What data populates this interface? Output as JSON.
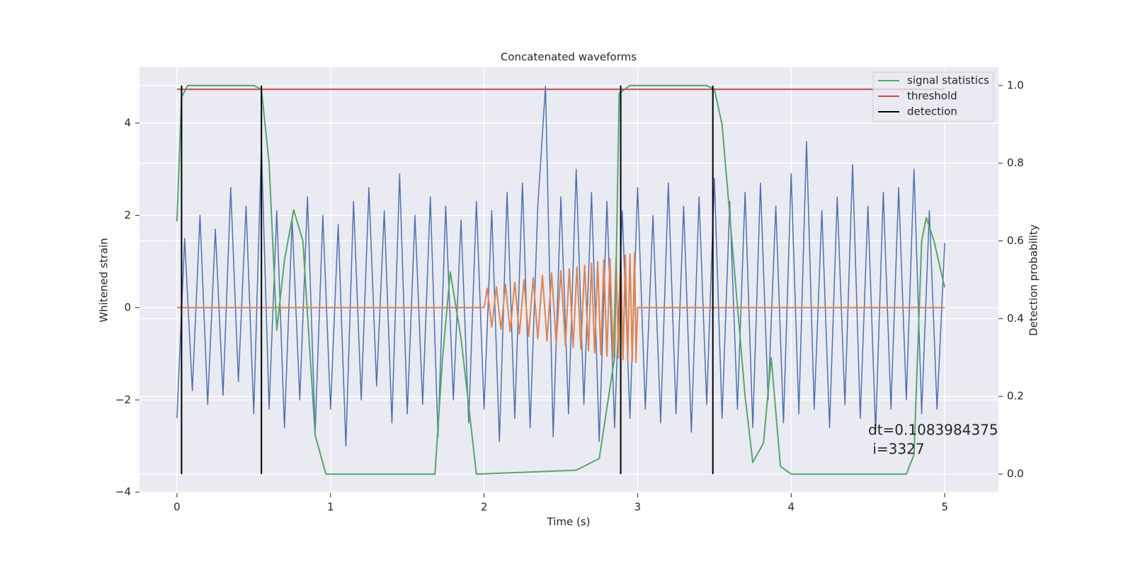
{
  "chart_data": {
    "type": "line",
    "title": "Concatenated waveforms",
    "xlabel": "Time (s)",
    "ylabel": "Whitened strain",
    "y2label": "Detection probability",
    "xlim": [
      -0.244,
      5.35
    ],
    "ylim": [
      -4.02,
      5.21
    ],
    "y2lim": [
      -0.049,
      1.047
    ],
    "xticks": [
      0,
      1,
      2,
      3,
      4,
      5
    ],
    "yticks": [
      {
        "value": -4,
        "label": "−4"
      },
      {
        "value": -2,
        "label": "−2"
      },
      0,
      2,
      4
    ],
    "y2ticks": [
      {
        "value": 0,
        "label": "0.0"
      },
      {
        "value": 0.2,
        "label": "0.2"
      },
      {
        "value": 0.4,
        "label": "0.4"
      },
      {
        "value": 0.6,
        "label": "0.6"
      },
      {
        "value": 0.8,
        "label": "0.8"
      },
      {
        "value": 1,
        "label": "1.0"
      }
    ],
    "grid": true,
    "legend": "upper right",
    "annotation": [
      "dt=0.1083984375",
      " i=3327"
    ],
    "series": [
      {
        "color": "#4c72b0",
        "width": 1.5,
        "x": [
          0,
          0.05,
          0.1,
          0.15,
          0.2,
          0.25,
          0.3,
          0.35,
          0.4,
          0.45,
          0.5,
          0.55,
          0.6,
          0.65,
          0.7,
          0.75,
          0.8,
          0.85,
          0.9,
          0.95,
          1,
          1.05,
          1.1,
          1.15,
          1.2,
          1.25,
          1.3,
          1.35,
          1.4,
          1.45,
          1.5,
          1.55,
          1.6,
          1.65,
          1.7,
          1.75,
          1.8,
          1.85,
          1.9,
          1.95,
          2,
          2.05,
          2.1,
          2.15,
          2.2,
          2.25,
          2.3,
          2.35,
          2.4,
          2.45,
          2.5,
          2.55,
          2.6,
          2.65,
          2.7,
          2.75,
          2.8,
          2.85,
          2.9,
          2.95,
          3,
          3.05,
          3.1,
          3.15,
          3.2,
          3.25,
          3.3,
          3.35,
          3.4,
          3.45,
          3.5,
          3.55,
          3.6,
          3.65,
          3.7,
          3.75,
          3.8,
          3.85,
          3.9,
          3.95,
          4,
          4.05,
          4.1,
          4.15,
          4.2,
          4.25,
          4.3,
          4.35,
          4.4,
          4.45,
          4.5,
          4.55,
          4.6,
          4.65,
          4.7,
          4.75,
          4.8,
          4.85,
          4.9,
          4.95,
          5
        ],
        "values": [
          -2.4,
          1.5,
          -1.8,
          2.0,
          -2.1,
          1.7,
          -1.9,
          2.6,
          -1.6,
          2.2,
          -2.3,
          3.5,
          -2.2,
          2.1,
          -2.6,
          1.9,
          -2.0,
          2.4,
          -2.7,
          2.0,
          -2.2,
          1.8,
          -3.0,
          2.3,
          -2.0,
          2.6,
          -1.7,
          2.1,
          -2.5,
          2.9,
          -2.3,
          2.0,
          -2.1,
          2.4,
          -2.8,
          2.2,
          -2.0,
          1.9,
          -2.5,
          2.3,
          -2.2,
          2.1,
          -2.9,
          2.5,
          -2.4,
          2.7,
          -2.6,
          2.2,
          4.8,
          -2.8,
          2.4,
          -2.3,
          3.0,
          -2.1,
          2.5,
          -2.9,
          2.3,
          -2.6,
          2.1,
          -2.4,
          2.6,
          -2.2,
          2.0,
          -2.5,
          2.7,
          -2.3,
          2.2,
          -2.7,
          2.4,
          -2.1,
          2.8,
          -2.4,
          2.3,
          -2.2,
          2.5,
          -2.6,
          2.7,
          -2.0,
          2.2,
          -2.5,
          2.9,
          -2.3,
          3.6,
          -2.2,
          2.1,
          -2.6,
          2.4,
          -2.1,
          3.1,
          -2.4,
          2.2,
          -2.7,
          2.5,
          -2.2,
          2.6,
          -2.0,
          3.0,
          -2.3,
          2.1,
          -2.2,
          1.4
        ]
      },
      {
        "color": "#dd8452",
        "width": 2,
        "x": [
          0,
          2.0,
          2.02,
          2.05,
          2.08,
          2.11,
          2.14,
          2.17,
          2.2,
          2.23,
          2.26,
          2.29,
          2.32,
          2.35,
          2.38,
          2.41,
          2.44,
          2.47,
          2.5,
          2.53,
          2.555,
          2.58,
          2.605,
          2.63,
          2.655,
          2.68,
          2.7,
          2.72,
          2.74,
          2.76,
          2.78,
          2.8,
          2.82,
          2.84,
          2.86,
          2.875,
          2.89,
          2.905,
          2.92,
          2.935,
          2.95,
          2.965,
          2.98,
          2.99,
          3.0,
          5
        ],
        "values": [
          0,
          0,
          0.42,
          -0.42,
          0.45,
          -0.47,
          0.5,
          -0.52,
          0.55,
          -0.57,
          0.6,
          -0.62,
          0.65,
          -0.67,
          0.7,
          -0.72,
          0.75,
          -0.77,
          0.8,
          -0.82,
          0.84,
          -0.86,
          0.88,
          -0.9,
          0.92,
          -0.94,
          0.96,
          -0.98,
          1.0,
          -1.02,
          1.03,
          -1.05,
          1.06,
          -1.08,
          1.09,
          -1.1,
          1.12,
          -1.13,
          1.14,
          -1.15,
          1.16,
          -1.17,
          1.18,
          -1.19,
          0,
          0
        ]
      },
      {
        "name": "signal statistics",
        "color": "#55a868",
        "width": 2,
        "axis": "y2",
        "x": [
          0,
          0.03,
          0.07,
          0.5,
          0.55,
          0.6,
          0.65,
          0.7,
          0.76,
          0.82,
          0.9,
          0.97,
          1.68,
          1.73,
          1.78,
          1.85,
          1.95,
          2.6,
          2.75,
          2.85,
          2.88,
          2.95,
          3.45,
          3.5,
          3.55,
          3.7,
          3.75,
          3.82,
          3.87,
          3.93,
          4.0,
          4.75,
          4.8,
          4.85,
          4.88,
          4.93,
          5.0
        ],
        "values": [
          0.65,
          0.97,
          1.0,
          1.0,
          0.99,
          0.8,
          0.37,
          0.55,
          0.68,
          0.6,
          0.1,
          0.0,
          0.0,
          0.3,
          0.52,
          0.35,
          0.0,
          0.01,
          0.04,
          0.3,
          0.98,
          1.0,
          1.0,
          0.99,
          0.9,
          0.2,
          0.03,
          0.08,
          0.3,
          0.02,
          0.0,
          0.0,
          0.05,
          0.6,
          0.66,
          0.6,
          0.48
        ]
      },
      {
        "name": "threshold",
        "color": "#c44e52",
        "width": 2,
        "axis": "y2",
        "x": [
          0,
          5
        ],
        "values": [
          0.99,
          0.99
        ]
      }
    ],
    "detections": {
      "name": "detection",
      "color": "#000000",
      "x": [
        0.03,
        0.55,
        2.89,
        3.49
      ],
      "ymin": 0,
      "ymax": 1
    }
  }
}
